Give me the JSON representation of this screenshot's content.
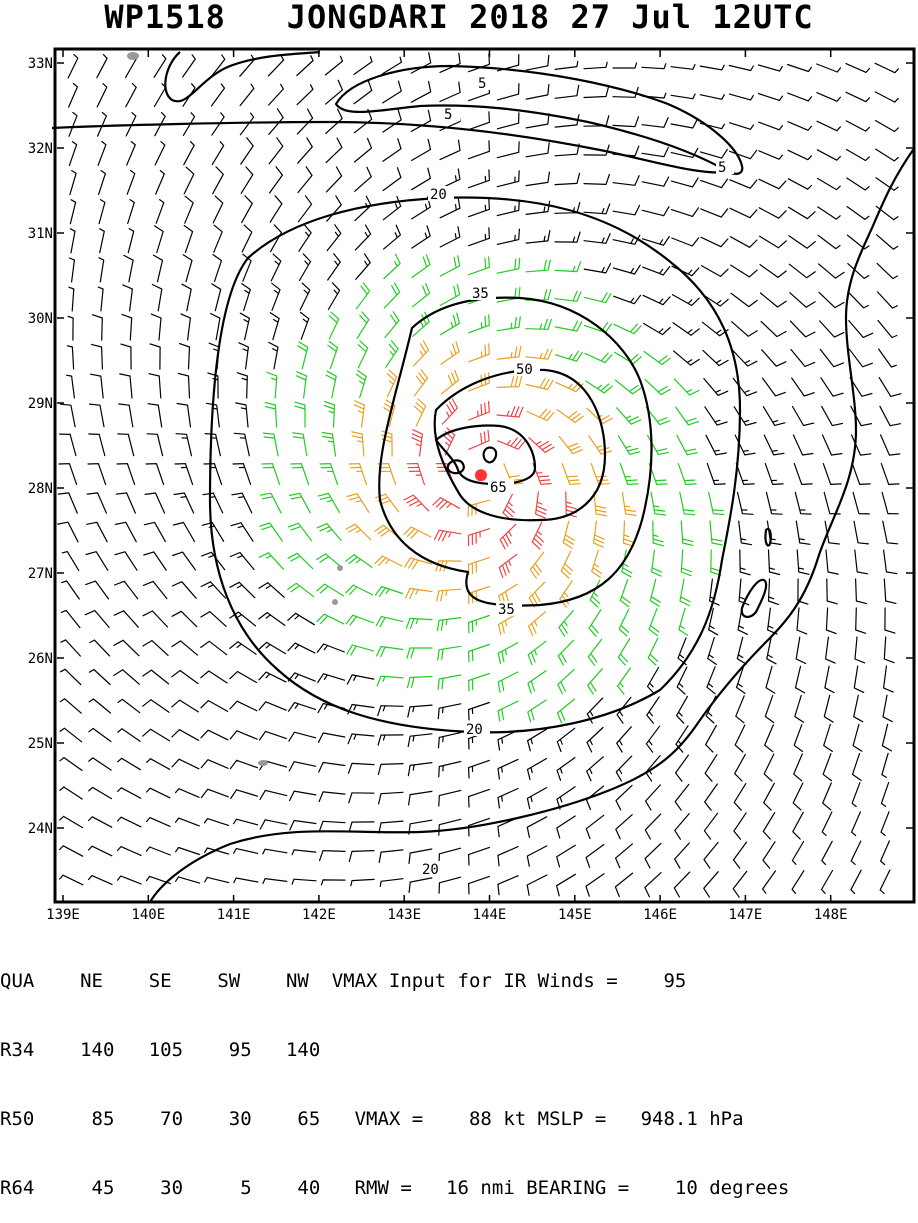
{
  "title": {
    "storm_id": "WP1518",
    "storm_name": "JONGDARI",
    "year": "2018",
    "date": "27 Jul",
    "time": "12UTC"
  },
  "map": {
    "lat_labels": [
      "33N",
      "32N",
      "31N",
      "30N",
      "29N",
      "28N",
      "27N",
      "26N",
      "25N",
      "24N"
    ],
    "lon_labels": [
      "139E",
      "140E",
      "141E",
      "142E",
      "143E",
      "144E",
      "145E",
      "146E",
      "147E",
      "148E"
    ],
    "contour_labels": [
      "5",
      "5",
      "5",
      "20",
      "20",
      "20",
      "35",
      "35",
      "50",
      "65"
    ],
    "center_marker": {
      "lat": 28.15,
      "lon": 143.9,
      "color": "#ff3333"
    },
    "wind_colors": {
      "below_34": "#000000",
      "34_to_49": "#22cc22",
      "50_to_63": "#e8a020",
      "64_plus": "#ee4444"
    }
  },
  "table": {
    "header": [
      "QUA",
      "NE",
      "SE",
      "SW",
      "NW"
    ],
    "rows": [
      {
        "label": "R34",
        "values": [
          "140",
          "105",
          "95",
          "140"
        ]
      },
      {
        "label": "R50",
        "values": [
          "85",
          "70",
          "30",
          "65"
        ]
      },
      {
        "label": "R64",
        "values": [
          "45",
          "30",
          "5",
          "40"
        ]
      }
    ],
    "vmax_input_text": "VMAX Input for IR Winds =",
    "vmax_input_value": "95",
    "vmax_text": "VMAX =",
    "vmax_value": "88",
    "vmax_unit": "kt",
    "mslp_text": "MSLP =",
    "mslp_value": "948.1",
    "mslp_unit": "hPa",
    "rmw_text": "RMW =",
    "rmw_value": "16",
    "rmw_unit": "nmi",
    "bearing_text": "BEARING =",
    "bearing_value": "10",
    "bearing_unit": "degrees"
  }
}
